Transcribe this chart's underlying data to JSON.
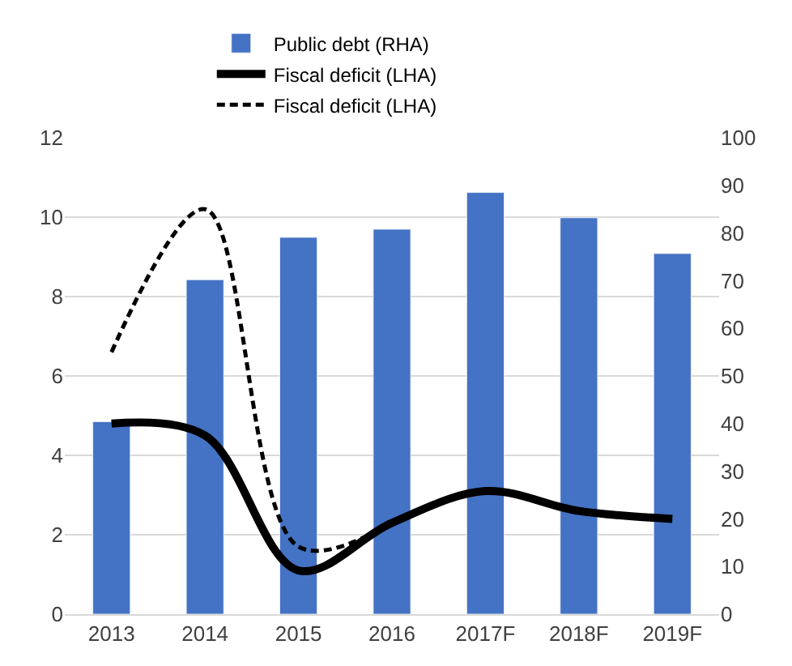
{
  "chart_data": {
    "type": "bar",
    "categories": [
      "2013",
      "2014",
      "2015",
      "2016",
      "2017F",
      "2018F",
      "2019F"
    ],
    "series": [
      {
        "name": "Public debt (RHA)",
        "axis": "y2",
        "color": "#4472c4",
        "values": [
          40.4,
          70.2,
          79.1,
          80.8,
          88.5,
          83.2,
          75.7
        ]
      },
      {
        "name": "Fiscal deficit (LHA)",
        "type": "line",
        "color": "#000000",
        "line_style": "solid",
        "values": [
          4.8,
          4.5,
          1.1,
          2.3,
          3.1,
          2.6,
          2.4
        ]
      },
      {
        "name": "Fiscal deficit (LHA)",
        "type": "line",
        "color": "#000000",
        "line_style": "dashed",
        "values": [
          6.6,
          10.2,
          1.7,
          2.3,
          null,
          null,
          null
        ]
      }
    ],
    "ylim": [
      0,
      12
    ],
    "yticks": [
      0,
      2,
      4,
      6,
      8,
      10,
      12
    ],
    "y2lim": [
      0,
      100
    ],
    "y2ticks": [
      0,
      10,
      20,
      30,
      40,
      50,
      60,
      70,
      80,
      90,
      100
    ],
    "grid": "y",
    "legend": "top",
    "marker": "none"
  }
}
